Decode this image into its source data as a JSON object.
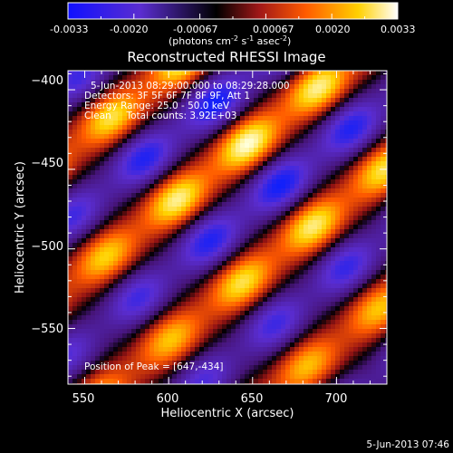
{
  "colorbar": {
    "ticks": [
      "-0.0033",
      "-0.0020",
      "-0.00067",
      "0.00067",
      "0.0020",
      "0.0033"
    ],
    "units_text": "(photons cm",
    "units_exp1": "-2",
    "units_mid": " s",
    "units_exp2": "-1",
    "units_tail": " asec",
    "units_exp3": "-2",
    "units_close": ")"
  },
  "chart_data": {
    "type": "heatmap",
    "title": "Reconstructed RHESSI Image",
    "xlabel": "Heliocentric X (arcsec)",
    "ylabel": "Heliocentric Y (arcsec)",
    "xlim": [
      540,
      730
    ],
    "ylim": [
      -585,
      -388
    ],
    "xticks": [
      550,
      600,
      650,
      700
    ],
    "xtick_labels": [
      "550",
      "600",
      "650",
      "700"
    ],
    "yticks": [
      -400,
      -450,
      -500,
      -550
    ],
    "ytick_labels": [
      "−400",
      "−450",
      "−500",
      "−550"
    ],
    "colorscale": [
      "#0018ff",
      "#5a2dd0",
      "#000000",
      "#b0201a",
      "#ff6a00",
      "#ffe000",
      "#ffffff"
    ],
    "value_range": [
      -0.0033,
      0.0033
    ],
    "annotations": [
      "5-Jun-2013 08:29:00.000 to 08:29:28.000",
      "Detectors: 3F 5F 6F 7F 8F 9F, Att 1",
      "Energy Range: 25.0 - 50.0 keV",
      "Clean     Total counts: 3.92E+03"
    ],
    "peak_label": "Position of Peak = [647,-434]",
    "peak": [
      647,
      -434
    ]
  },
  "footer": {
    "timestamp": "5-Jun-2013 07:46"
  }
}
